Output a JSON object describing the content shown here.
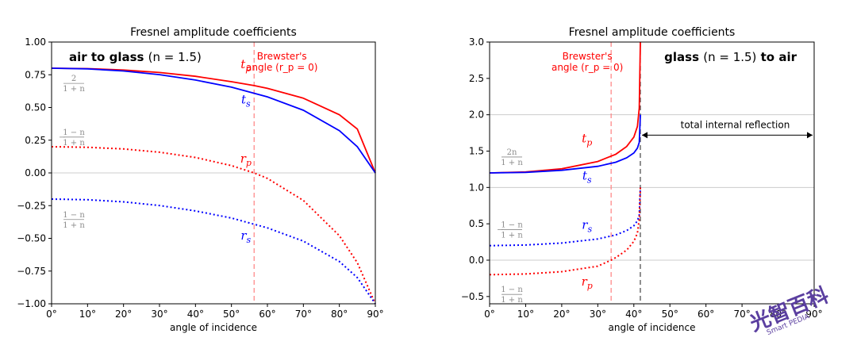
{
  "chart_data": [
    {
      "type": "line",
      "title": "Fresnel amplitude coefficients",
      "xlabel": "angle of incidence",
      "xlim": [
        0,
        90
      ],
      "ylim": [
        -1.0,
        1.0
      ],
      "xticks": [
        "0°",
        "10°",
        "20°",
        "30°",
        "40°",
        "50°",
        "60°",
        "70°",
        "80°",
        "90°"
      ],
      "yticks": [
        "1.00",
        "0.75",
        "0.50",
        "0.25",
        "0.00",
        "−0.25",
        "−0.50",
        "−0.75",
        "−1.00"
      ],
      "heading": {
        "bold_a": "air to glass",
        "rest": "(n = 1.5)"
      },
      "brewster_angle_deg": 56.3,
      "brewster_label": [
        "Brewster's",
        "angle (r_p = 0)"
      ],
      "series": [
        {
          "name": "t_p",
          "color": "#ff0000",
          "style": "solid",
          "x": [
            0,
            10,
            20,
            30,
            40,
            50,
            56.3,
            60,
            70,
            80,
            85,
            90
          ],
          "y": [
            0.8,
            0.797,
            0.786,
            0.767,
            0.738,
            0.697,
            0.667,
            0.646,
            0.571,
            0.444,
            0.335,
            0.0
          ]
        },
        {
          "name": "t_s",
          "color": "#0000ff",
          "style": "solid",
          "x": [
            0,
            10,
            20,
            30,
            40,
            50,
            60,
            70,
            80,
            85,
            90
          ],
          "y": [
            0.8,
            0.795,
            0.779,
            0.751,
            0.71,
            0.655,
            0.581,
            0.479,
            0.323,
            0.2,
            0.0
          ]
        },
        {
          "name": "r_p",
          "color": "#ff0000",
          "style": "dotted",
          "x": [
            0,
            10,
            20,
            30,
            40,
            50,
            56.3,
            60,
            70,
            80,
            85,
            90
          ],
          "y": [
            0.2,
            0.196,
            0.183,
            0.158,
            0.118,
            0.056,
            0.0,
            -0.042,
            -0.21,
            -0.48,
            -0.686,
            -1.0
          ]
        },
        {
          "name": "r_s",
          "color": "#0000ff",
          "style": "dotted",
          "x": [
            0,
            10,
            20,
            30,
            40,
            50,
            60,
            70,
            80,
            85,
            90
          ],
          "y": [
            -0.2,
            -0.205,
            -0.221,
            -0.249,
            -0.29,
            -0.345,
            -0.42,
            -0.521,
            -0.677,
            -0.8,
            -1.0
          ]
        }
      ],
      "series_labels": [
        {
          "main": "t",
          "sub": "p",
          "x": 54,
          "y": 0.8,
          "color": "#ff0000"
        },
        {
          "main": "t",
          "sub": "s",
          "x": 54,
          "y": 0.53,
          "color": "#0000ff"
        },
        {
          "main": "r",
          "sub": "p",
          "x": 54,
          "y": 0.08,
          "color": "#ff0000"
        },
        {
          "main": "r",
          "sub": "s",
          "x": 54,
          "y": -0.51,
          "color": "#0000ff"
        }
      ],
      "limit_labels": [
        {
          "prefix": "",
          "num": "2",
          "den": "1 + n",
          "y": 0.69
        },
        {
          "prefix": "−",
          "num": "1 − n",
          "den": "1 + n",
          "y": 0.28
        },
        {
          "prefix": "",
          "num": "1 − n",
          "den": "1 + n",
          "y": -0.35
        }
      ]
    },
    {
      "type": "line",
      "title": "Fresnel amplitude coefficients",
      "xlabel": "angle of incidence",
      "xlim": [
        0,
        90
      ],
      "ylim": [
        -0.6,
        3.0
      ],
      "xticks": [
        "0°",
        "10°",
        "20°",
        "30°",
        "40°",
        "50°",
        "60°",
        "70°",
        "80°",
        "90°"
      ],
      "yticks": [
        "3.0",
        "2.5",
        "2.0",
        "1.5",
        "1.0",
        "0.5",
        "0.0",
        "−0.5"
      ],
      "heading": {
        "bold_a": "glass",
        "rest": "(n = 1.5)",
        "bold_b": "to air"
      },
      "brewster_angle_deg": 33.7,
      "critical_angle_deg": 41.8,
      "brewster_label": [
        "Brewster's",
        "angle (r_p = 0)"
      ],
      "tir_label": "total internal reflection",
      "series": [
        {
          "name": "t_p",
          "color": "#ff0000",
          "style": "solid",
          "x": [
            0,
            10,
            20,
            30,
            35,
            38,
            40,
            41,
            41.5,
            41.8
          ],
          "y": [
            1.2,
            1.213,
            1.257,
            1.357,
            1.457,
            1.563,
            1.693,
            1.84,
            2.09,
            3.0
          ]
        },
        {
          "name": "t_s",
          "color": "#0000ff",
          "style": "solid",
          "x": [
            0,
            10,
            20,
            30,
            35,
            38,
            40,
            41,
            41.5,
            41.8
          ],
          "y": [
            1.2,
            1.208,
            1.236,
            1.291,
            1.347,
            1.407,
            1.474,
            1.542,
            1.62,
            2.0
          ]
        },
        {
          "name": "r_s",
          "color": "#0000ff",
          "style": "dotted",
          "x": [
            0,
            10,
            20,
            30,
            35,
            38,
            40,
            41,
            41.5,
            41.8
          ],
          "y": [
            0.2,
            0.208,
            0.236,
            0.291,
            0.347,
            0.407,
            0.474,
            0.542,
            0.62,
            1.0
          ]
        },
        {
          "name": "r_p",
          "color": "#ff0000",
          "style": "dotted",
          "x": [
            0,
            10,
            20,
            30,
            33.7,
            35,
            38,
            40,
            41,
            41.5,
            41.8
          ],
          "y": [
            -0.2,
            -0.19,
            -0.158,
            -0.083,
            0.0,
            0.036,
            0.138,
            0.259,
            0.372,
            0.566,
            1.0
          ]
        }
      ],
      "series_labels": [
        {
          "main": "t",
          "sub": "p",
          "x": 27,
          "y": 1.62,
          "color": "#ff0000"
        },
        {
          "main": "t",
          "sub": "s",
          "x": 27,
          "y": 1.11,
          "color": "#0000ff"
        },
        {
          "main": "r",
          "sub": "s",
          "x": 27,
          "y": 0.43,
          "color": "#0000ff"
        },
        {
          "main": "r",
          "sub": "p",
          "x": 27,
          "y": -0.35,
          "color": "#ff0000"
        }
      ],
      "limit_labels": [
        {
          "prefix": "",
          "num": "2n",
          "den": "1 + n",
          "y": 1.43
        },
        {
          "prefix": "−",
          "num": "1 − n",
          "den": "1 + n",
          "y": 0.43
        },
        {
          "prefix": "",
          "num": "1 − n",
          "den": "1 + n",
          "y": -0.46
        }
      ]
    }
  ],
  "watermark": {
    "text": "光智百科",
    "subtext": "Smart PEDIA"
  }
}
